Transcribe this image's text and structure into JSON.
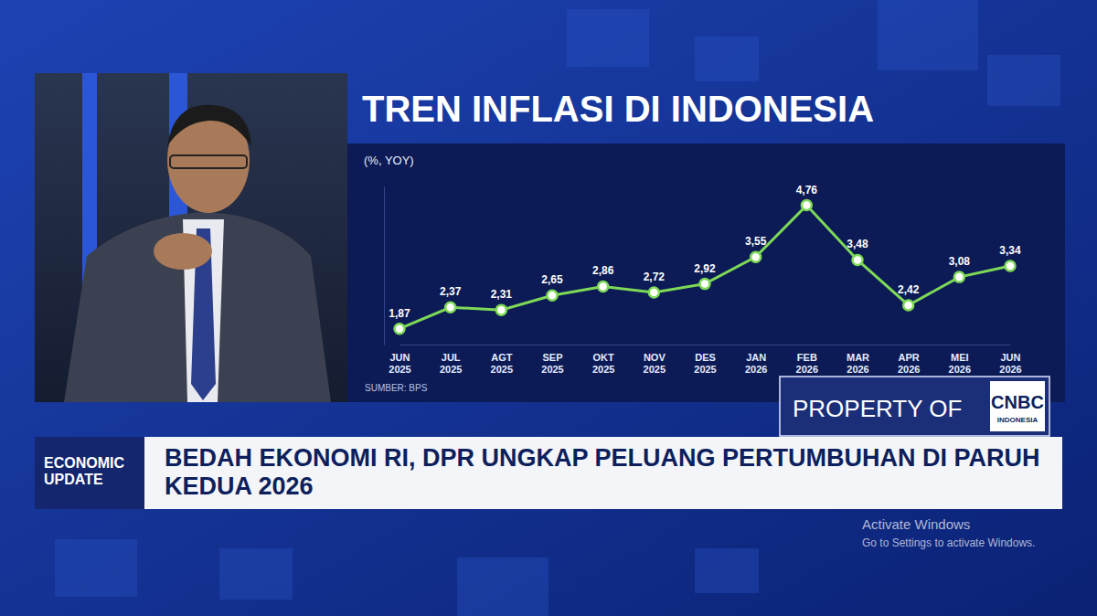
{
  "chart_data": {
    "type": "line",
    "title": "TREN INFLASI DI INDONESIA",
    "ylabel": "(%, YOY)",
    "categories": [
      "JUN 2025",
      "JUL 2025",
      "AGT 2025",
      "SEP 2025",
      "OKT 2025",
      "NOV 2025",
      "DES 2025",
      "JAN 2026",
      "FEB 2026",
      "MAR 2026",
      "APR 2026",
      "MEI 2026",
      "JUN 2026"
    ],
    "values": [
      1.87,
      2.37,
      2.31,
      2.65,
      2.86,
      2.72,
      2.92,
      3.55,
      4.76,
      3.48,
      2.42,
      3.08,
      3.34
    ],
    "value_labels": [
      "1,87",
      "2,37",
      "2,31",
      "2,65",
      "2,86",
      "2,72",
      "2,92",
      "3,55",
      "4,76",
      "3,48",
      "2,42",
      "3,08",
      "3,34"
    ],
    "color": "#7ed957",
    "marker": "circle",
    "data_labels": true,
    "tick_labels": "x",
    "grid": false,
    "ylim": [
      1.5,
      5.2
    ],
    "annotations": [
      "SUMBER: BPS",
      "ECONOMIC UPDATE",
      "BEDAH EKONOMI RI, DPR UNGKAP PELUANG PERTUMBUHAN DI PARUH KEDUA 2026",
      "PROPERTY OF",
      "CNBC",
      "INDONESIA",
      "Activate Windows",
      "Go to Settings to activate Windows."
    ]
  }
}
